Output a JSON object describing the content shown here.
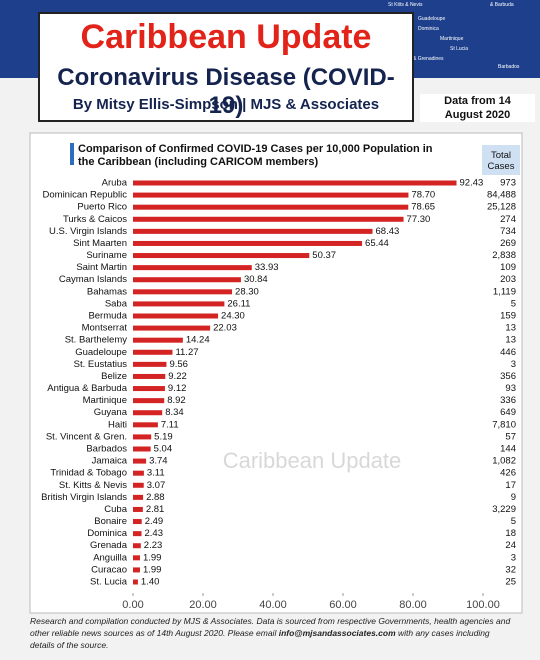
{
  "header": {
    "map_labels": [
      "St Kitts & Nevis",
      "& Barbuda",
      "Guadeloupe",
      "Dominica",
      "Martinique",
      "St Lucia",
      "Vincent & Grenadines",
      "Barbados"
    ],
    "brand": "Caribbean Update",
    "title": "Coronavirus Disease (COVID-19)",
    "byline": "By Mitsy Ellis-Simpson | MJS & Associates",
    "date_line1": "Data from 14",
    "date_line2": "August 2020"
  },
  "chart_data": {
    "type": "bar",
    "orientation": "horizontal",
    "title": "Comparison of Confirmed COVID-19 Cases per 10,000 Population in the Caribbean (including CARICOM members)",
    "categories": [
      "Aruba",
      "Dominican Republic",
      "Puerto Rico",
      "Turks & Caicos",
      "U.S. Virgin Islands",
      "Sint Maarten",
      "Suriname",
      "Saint Martin",
      "Cayman Islands",
      "Bahamas",
      "Saba",
      "Bermuda",
      "Montserrat",
      "St. Barthelemy",
      "Guadeloupe",
      "St. Eustatius",
      "Belize",
      "Antigua & Barbuda",
      "Martinique",
      "Guyana",
      "Haiti",
      "St. Vincent & Gren.",
      "Barbados",
      "Jamaica",
      "Trinidad & Tobago",
      "St. Kitts & Nevis",
      "British Virgin Islands",
      "Cuba",
      "Bonaire",
      "Dominica",
      "Grenada",
      "Anguilla",
      "Curacao",
      "St. Lucia"
    ],
    "values": [
      92.43,
      78.7,
      78.65,
      77.3,
      68.43,
      65.44,
      50.37,
      33.93,
      30.84,
      28.3,
      26.11,
      24.3,
      22.03,
      14.24,
      11.27,
      9.56,
      9.22,
      9.12,
      8.92,
      8.34,
      7.11,
      5.19,
      5.04,
      3.74,
      3.11,
      3.07,
      2.88,
      2.81,
      2.49,
      2.43,
      2.23,
      1.99,
      1.99,
      1.4
    ],
    "value_labels": [
      "92.43",
      "78.70",
      "78.65",
      "77.30",
      "68.43",
      "65.44",
      "50.37",
      "33.93",
      "30.84",
      "28.30",
      "26.11",
      "24.30",
      "22.03",
      "14.24",
      "11.27",
      "9.56",
      "9.22",
      "9.12",
      "8.92",
      "8.34",
      "7.11",
      "5.19",
      "5.04",
      "3.74",
      "3.11",
      "3.07",
      "2.88",
      "2.81",
      "2.49",
      "2.43",
      "2.23",
      "1.99",
      "1.99",
      "1.40"
    ],
    "color": "#d42323",
    "total_cases_header": "Total Cases",
    "total_cases": [
      "973",
      "84,488",
      "25,128",
      "274",
      "734",
      "269",
      "2,838",
      "109",
      "203",
      "1,119",
      "5",
      "159",
      "13",
      "13",
      "446",
      "3",
      "356",
      "93",
      "336",
      "649",
      "7,810",
      "57",
      "144",
      "1,082",
      "426",
      "17",
      "9",
      "3,229",
      "5",
      "18",
      "24",
      "3",
      "32",
      "25"
    ],
    "xlim": [
      0,
      100
    ],
    "xticks": [
      {
        "value": 0,
        "label": "0.00"
      },
      {
        "value": 20,
        "label": "20.00"
      },
      {
        "value": 40,
        "label": "40.00"
      },
      {
        "value": 60,
        "label": "60.00"
      },
      {
        "value": 80,
        "label": "80.00"
      },
      {
        "value": 100,
        "label": "100.00"
      }
    ],
    "watermark": "Caribbean Update"
  },
  "footer": {
    "before": "Research and compilation conducted by MJS & Associates. Data is sourced from respective Governments, health agencies and other reliable news sources as of 14th August 2020. Please email ",
    "email": "info@mjsandassociates.com",
    "after": " with any cases including details of the source."
  }
}
